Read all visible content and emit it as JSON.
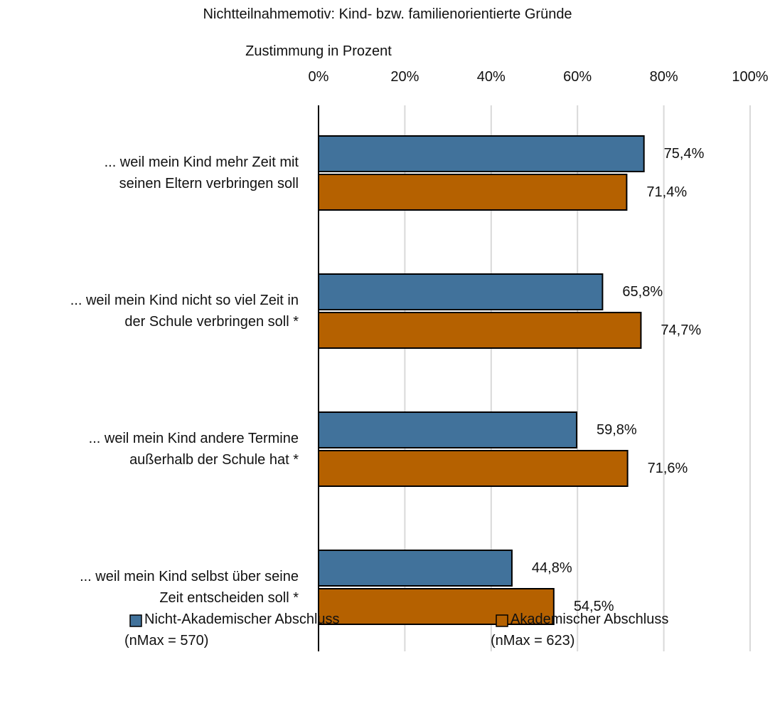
{
  "chart_data": {
    "type": "barh",
    "title": "Nichtteilnahmemotiv: Kind- bzw. familienorientierte Gründe",
    "x_label": "Zustimmung in Prozent",
    "categories": [
      "... weil mein Kind mehr Zeit mit\nseinen Eltern verbringen soll",
      "... weil mein Kind nicht so viel Zeit in\nder Schule verbringen soll *",
      "... weil mein Kind andere Termine\naußerhalb der Schule hat *",
      "... weil mein Kind selbst über seine\nZeit entscheiden soll *"
    ],
    "series": [
      {
        "name": "Nicht-Akademischer Abschluss\n(nMax = 570)",
        "color": "#41729b",
        "values": [
          75.4,
          65.8,
          59.8,
          44.8
        ],
        "value_labels": [
          "75,4%",
          "65,8%",
          "59,8%",
          "44,8%"
        ]
      },
      {
        "name": "Akademischer Abschluss\n(nMax = 623)",
        "color": "#b56100",
        "values": [
          71.4,
          74.7,
          71.6,
          54.5
        ],
        "value_labels": [
          "71,4%",
          "74,7%",
          "71,6%",
          "54,5%"
        ]
      }
    ],
    "xlim": [
      0,
      100
    ],
    "xticks": [
      {
        "value": 0,
        "label": "0%"
      },
      {
        "value": 20,
        "label": "20%"
      },
      {
        "value": 40,
        "label": "40%"
      },
      {
        "value": 60,
        "label": "60%"
      },
      {
        "value": 80,
        "label": "80%"
      },
      {
        "value": 100,
        "label": "100%"
      }
    ],
    "grid": true
  }
}
